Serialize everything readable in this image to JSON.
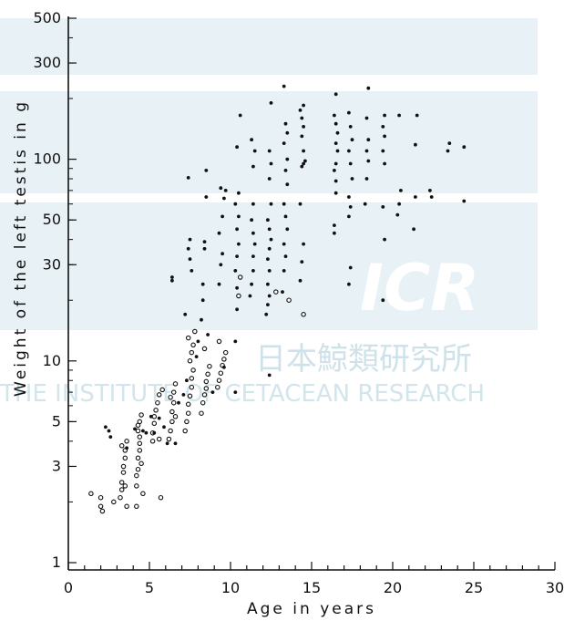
{
  "colors": {
    "watermark_band": "#e6f0f5",
    "ink": "#111111"
  },
  "watermark": {
    "logo": "ICR",
    "japanese": "日本鯨類研究所",
    "english": "THE INSTITUTE OF CETACEAN RESEARCH"
  },
  "chart_data": {
    "type": "scatter",
    "title": "",
    "xlabel": "Age in years",
    "ylabel": "Weight of the left testis in g",
    "xlim": [
      0,
      30
    ],
    "ylim": [
      1,
      500
    ],
    "yscale": "log",
    "grid": false,
    "x_ticks": [
      0,
      5,
      10,
      15,
      20,
      25,
      30
    ],
    "y_ticks": [
      1,
      3,
      5,
      10,
      30,
      50,
      100,
      300,
      500
    ],
    "series": [
      {
        "marker": "open-circle",
        "points": [
          [
            1.4,
            2.2
          ],
          [
            2.0,
            2.1
          ],
          [
            2.0,
            1.9
          ],
          [
            2.1,
            1.8
          ],
          [
            2.8,
            2.0
          ],
          [
            3.2,
            2.1
          ],
          [
            3.3,
            2.3
          ],
          [
            3.3,
            2.5
          ],
          [
            3.4,
            2.8
          ],
          [
            3.4,
            3.0
          ],
          [
            3.5,
            3.3
          ],
          [
            3.5,
            3.6
          ],
          [
            3.6,
            4.0
          ],
          [
            3.3,
            3.8
          ],
          [
            3.5,
            2.4
          ],
          [
            3.6,
            1.9
          ],
          [
            4.2,
            2.4
          ],
          [
            4.2,
            2.7
          ],
          [
            4.3,
            2.9
          ],
          [
            4.3,
            3.3
          ],
          [
            4.4,
            3.6
          ],
          [
            4.4,
            3.9
          ],
          [
            4.4,
            4.2
          ],
          [
            4.3,
            4.5
          ],
          [
            4.3,
            4.8
          ],
          [
            4.4,
            5.0
          ],
          [
            4.5,
            5.4
          ],
          [
            4.5,
            3.1
          ],
          [
            4.6,
            2.2
          ],
          [
            4.2,
            1.9
          ],
          [
            5.2,
            4.0
          ],
          [
            5.2,
            4.4
          ],
          [
            5.3,
            4.9
          ],
          [
            5.3,
            5.3
          ],
          [
            5.4,
            5.7
          ],
          [
            5.5,
            6.2
          ],
          [
            5.6,
            6.8
          ],
          [
            5.8,
            7.2
          ],
          [
            5.6,
            4.1
          ],
          [
            5.7,
            2.1
          ],
          [
            6.2,
            4.1
          ],
          [
            6.3,
            4.5
          ],
          [
            6.4,
            5.0
          ],
          [
            6.4,
            5.6
          ],
          [
            6.5,
            6.2
          ],
          [
            6.5,
            7.0
          ],
          [
            6.6,
            7.7
          ],
          [
            6.3,
            6.6
          ],
          [
            6.6,
            5.3
          ],
          [
            7.2,
            4.5
          ],
          [
            7.3,
            5.0
          ],
          [
            7.4,
            5.5
          ],
          [
            7.4,
            6.1
          ],
          [
            7.5,
            6.7
          ],
          [
            7.6,
            7.4
          ],
          [
            7.6,
            8.2
          ],
          [
            7.7,
            9.0
          ],
          [
            7.5,
            10.0
          ],
          [
            7.6,
            11.0
          ],
          [
            7.7,
            12.0
          ],
          [
            7.4,
            13.0
          ],
          [
            7.8,
            14.0
          ],
          [
            8.2,
            5.5
          ],
          [
            8.3,
            6.2
          ],
          [
            8.4,
            6.8
          ],
          [
            8.5,
            7.3
          ],
          [
            8.5,
            7.9
          ],
          [
            8.6,
            8.6
          ],
          [
            8.7,
            9.4
          ],
          [
            8.4,
            11.5
          ],
          [
            9.2,
            7.4
          ],
          [
            9.3,
            8.0
          ],
          [
            9.4,
            8.7
          ],
          [
            9.5,
            9.5
          ],
          [
            9.6,
            10.2
          ],
          [
            9.7,
            11.0
          ],
          [
            9.3,
            12.5
          ],
          [
            10.5,
            21.0
          ],
          [
            10.6,
            26.0
          ],
          [
            12.8,
            22.0
          ],
          [
            13.6,
            20.0
          ],
          [
            14.5,
            17.0
          ]
        ]
      },
      {
        "marker": "filled-dot",
        "points": [
          [
            2.3,
            4.7
          ],
          [
            2.6,
            4.2
          ],
          [
            2.5,
            4.5
          ],
          [
            3.6,
            3.7
          ],
          [
            4.1,
            4.6
          ],
          [
            4.6,
            4.5
          ],
          [
            4.8,
            4.4
          ],
          [
            5.1,
            5.3
          ],
          [
            5.3,
            4.4
          ],
          [
            5.6,
            5.2
          ],
          [
            5.9,
            4.7
          ],
          [
            6.1,
            3.9
          ],
          [
            6.8,
            6.2
          ],
          [
            6.4,
            26.0
          ],
          [
            6.4,
            25.0
          ],
          [
            6.6,
            3.9
          ],
          [
            7.1,
            6.8
          ],
          [
            7.3,
            8.0
          ],
          [
            7.2,
            17.0
          ],
          [
            7.6,
            28.0
          ],
          [
            7.5,
            32.0
          ],
          [
            7.4,
            36.0
          ],
          [
            7.5,
            40.0
          ],
          [
            7.4,
            81.0
          ],
          [
            7.9,
            10.5
          ],
          [
            8.0,
            12.5
          ],
          [
            8.2,
            16.0
          ],
          [
            8.3,
            20.0
          ],
          [
            8.3,
            24.0
          ],
          [
            8.4,
            36.0
          ],
          [
            8.4,
            39.0
          ],
          [
            8.5,
            65.0
          ],
          [
            8.5,
            88.0
          ],
          [
            8.9,
            7.0
          ],
          [
            8.6,
            13.5
          ],
          [
            9.3,
            24.0
          ],
          [
            9.4,
            30.0
          ],
          [
            9.5,
            34.0
          ],
          [
            9.3,
            43.0
          ],
          [
            9.5,
            52.0
          ],
          [
            9.6,
            64.0
          ],
          [
            9.4,
            72.0
          ],
          [
            9.7,
            70.0
          ],
          [
            9.6,
            9.3
          ],
          [
            10.3,
            12.5
          ],
          [
            10.4,
            18.0
          ],
          [
            10.4,
            23.0
          ],
          [
            10.3,
            28.0
          ],
          [
            10.4,
            33.0
          ],
          [
            10.5,
            38.0
          ],
          [
            10.4,
            45.0
          ],
          [
            10.5,
            52.0
          ],
          [
            10.3,
            60.0
          ],
          [
            10.5,
            68.0
          ],
          [
            10.4,
            115.0
          ],
          [
            10.6,
            165.0
          ],
          [
            10.3,
            7.0
          ],
          [
            11.2,
            21.0
          ],
          [
            11.3,
            24.0
          ],
          [
            11.4,
            28.0
          ],
          [
            11.4,
            33.0
          ],
          [
            11.5,
            38.0
          ],
          [
            11.4,
            43.0
          ],
          [
            11.3,
            50.0
          ],
          [
            11.4,
            60.0
          ],
          [
            11.4,
            92.0
          ],
          [
            11.5,
            110.0
          ],
          [
            11.3,
            125.0
          ],
          [
            12.2,
            17.0
          ],
          [
            12.3,
            19.0
          ],
          [
            12.4,
            21.0
          ],
          [
            12.3,
            24.0
          ],
          [
            12.4,
            28.0
          ],
          [
            12.3,
            32.0
          ],
          [
            12.4,
            36.0
          ],
          [
            12.5,
            40.0
          ],
          [
            12.4,
            45.0
          ],
          [
            12.3,
            50.0
          ],
          [
            12.5,
            60.0
          ],
          [
            12.4,
            80.0
          ],
          [
            12.5,
            95.0
          ],
          [
            12.4,
            110.0
          ],
          [
            12.5,
            190.0
          ],
          [
            12.4,
            8.5
          ],
          [
            13.2,
            22.0
          ],
          [
            13.3,
            28.0
          ],
          [
            13.4,
            33.0
          ],
          [
            13.3,
            38.0
          ],
          [
            13.5,
            45.0
          ],
          [
            13.4,
            52.0
          ],
          [
            13.3,
            60.0
          ],
          [
            13.5,
            75.0
          ],
          [
            13.4,
            88.0
          ],
          [
            13.5,
            100.0
          ],
          [
            13.3,
            120.0
          ],
          [
            13.5,
            135.0
          ],
          [
            13.4,
            150.0
          ],
          [
            13.3,
            230.0
          ],
          [
            14.3,
            25.0
          ],
          [
            14.4,
            31.0
          ],
          [
            14.5,
            38.0
          ],
          [
            14.3,
            60.0
          ],
          [
            14.4,
            92.0
          ],
          [
            14.5,
            95.0
          ],
          [
            14.6,
            98.0
          ],
          [
            14.5,
            110.0
          ],
          [
            14.4,
            130.0
          ],
          [
            14.5,
            145.0
          ],
          [
            14.4,
            160.0
          ],
          [
            14.5,
            185.0
          ],
          [
            14.3,
            175.0
          ],
          [
            16.4,
            43.0
          ],
          [
            16.4,
            47.0
          ],
          [
            16.5,
            68.0
          ],
          [
            16.5,
            78.0
          ],
          [
            16.4,
            88.0
          ],
          [
            16.5,
            95.0
          ],
          [
            16.6,
            110.0
          ],
          [
            16.5,
            120.0
          ],
          [
            16.6,
            135.0
          ],
          [
            16.5,
            150.0
          ],
          [
            16.4,
            165.0
          ],
          [
            16.5,
            210.0
          ],
          [
            17.3,
            24.0
          ],
          [
            17.4,
            29.0
          ],
          [
            17.3,
            52.0
          ],
          [
            17.4,
            58.0
          ],
          [
            17.3,
            65.0
          ],
          [
            17.5,
            80.0
          ],
          [
            17.4,
            95.0
          ],
          [
            17.3,
            110.0
          ],
          [
            17.5,
            125.0
          ],
          [
            17.4,
            145.0
          ],
          [
            17.3,
            170.0
          ],
          [
            18.3,
            60.0
          ],
          [
            18.4,
            80.0
          ],
          [
            18.5,
            98.0
          ],
          [
            18.4,
            110.0
          ],
          [
            18.5,
            125.0
          ],
          [
            18.4,
            160.0
          ],
          [
            18.5,
            225.0
          ],
          [
            19.4,
            20.0
          ],
          [
            19.5,
            40.0
          ],
          [
            19.4,
            58.0
          ],
          [
            19.5,
            95.0
          ],
          [
            19.4,
            110.0
          ],
          [
            19.5,
            130.0
          ],
          [
            19.4,
            145.0
          ],
          [
            19.5,
            165.0
          ],
          [
            20.3,
            53.0
          ],
          [
            20.4,
            60.0
          ],
          [
            20.5,
            70.0
          ],
          [
            20.4,
            165.0
          ],
          [
            21.3,
            45.0
          ],
          [
            21.4,
            65.0
          ],
          [
            21.4,
            118.0
          ],
          [
            21.5,
            165.0
          ],
          [
            22.3,
            70.0
          ],
          [
            22.4,
            65.0
          ],
          [
            23.4,
            110.0
          ],
          [
            23.5,
            120.0
          ],
          [
            24.4,
            62.0
          ],
          [
            24.4,
            115.0
          ]
        ]
      }
    ]
  }
}
